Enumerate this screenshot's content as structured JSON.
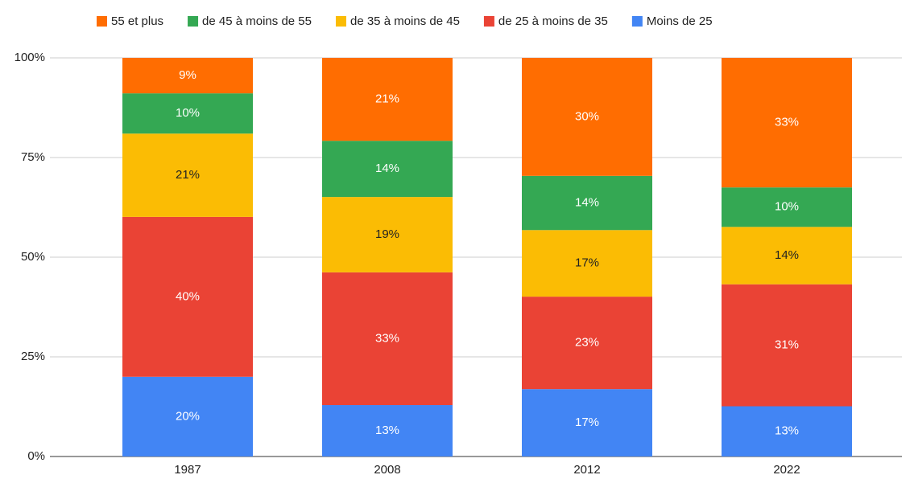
{
  "chart_data": {
    "type": "stacked_bar_100",
    "categories": [
      "1987",
      "2008",
      "2012",
      "2022"
    ],
    "series": [
      {
        "name": "55 et plus",
        "color": "#ff6d01",
        "values": [
          8.9,
          20.8,
          29.6,
          32.5
        ],
        "value_labels": [
          "9%",
          "21%",
          "30%",
          "33%"
        ]
      },
      {
        "name": "de 45 à moins de 55",
        "color": "#34a853",
        "values": [
          10.1,
          14.1,
          13.6,
          9.9
        ],
        "value_labels": [
          "10%",
          "14%",
          "14%",
          "10%"
        ]
      },
      {
        "name": "de 35 à moins de 45",
        "color": "#fbbc04",
        "values": [
          20.9,
          18.9,
          16.7,
          14.4
        ],
        "value_labels": [
          "21%",
          "19%",
          "17%",
          "14%"
        ]
      },
      {
        "name": "de 25 à moins de 35",
        "color": "#ea4335",
        "values": [
          40.1,
          33.3,
          23.2,
          30.6
        ],
        "value_labels": [
          "40%",
          "33%",
          "23%",
          "31%"
        ]
      },
      {
        "name": "Moins de 25",
        "color": "#4285f4",
        "values": [
          20.0,
          12.9,
          16.9,
          12.6
        ],
        "value_labels": [
          "20%",
          "13%",
          "17%",
          "13%"
        ]
      }
    ],
    "ylim": [
      0,
      100
    ],
    "yticks": [
      {
        "value": 0,
        "label": "0%"
      },
      {
        "value": 25,
        "label": "25%"
      },
      {
        "value": 50,
        "label": "50%"
      },
      {
        "value": 75,
        "label": "75%"
      },
      {
        "value": 100,
        "label": "100%"
      }
    ],
    "grid": true,
    "legend": "top"
  }
}
